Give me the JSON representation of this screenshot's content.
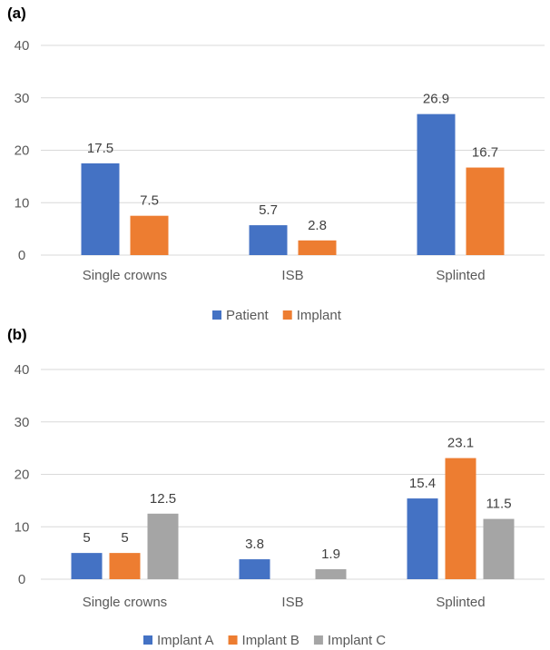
{
  "chart_data": [
    {
      "panel_label": "(a)",
      "type": "bar",
      "categories": [
        "Single crowns",
        "ISB",
        "Splinted"
      ],
      "series": [
        {
          "name": "Patient",
          "values": [
            17.5,
            5.7,
            26.9
          ],
          "labels": [
            "17.5",
            "5.7",
            "26.9"
          ],
          "color": "#4472C4"
        },
        {
          "name": "Implant",
          "values": [
            7.5,
            2.8,
            16.7
          ],
          "labels": [
            "7.5",
            "2.8",
            "16.7"
          ],
          "color": "#ED7D31"
        }
      ],
      "yticks": [
        "0",
        "10",
        "20",
        "30",
        "40"
      ],
      "ylim": [
        0,
        40
      ],
      "grid": true,
      "legend": "bottom"
    },
    {
      "panel_label": "(b)",
      "type": "bar",
      "categories": [
        "Single crowns",
        "ISB",
        "Splinted"
      ],
      "series": [
        {
          "name": "Implant A",
          "values": [
            5,
            3.8,
            15.4
          ],
          "labels": [
            "5",
            "3.8",
            "15.4"
          ],
          "color": "#4472C4"
        },
        {
          "name": "Implant B",
          "values": [
            5,
            0,
            23.1
          ],
          "labels": [
            "5",
            "",
            "23.1"
          ],
          "color": "#ED7D31"
        },
        {
          "name": "Implant C",
          "values": [
            12.5,
            1.9,
            11.5
          ],
          "labels": [
            "12.5",
            "1.9",
            "11.5"
          ],
          "color": "#A5A5A5"
        }
      ],
      "yticks": [
        "0",
        "10",
        "20",
        "30",
        "40"
      ],
      "ylim": [
        0,
        40
      ],
      "grid": true,
      "legend": "bottom"
    }
  ]
}
